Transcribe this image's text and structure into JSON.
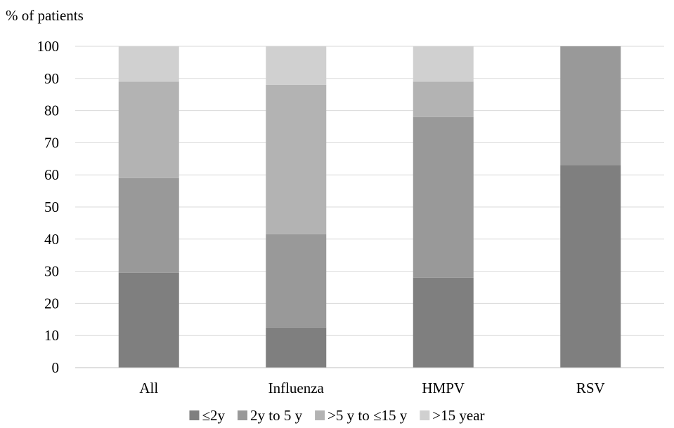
{
  "chart_data": {
    "type": "bar",
    "stacked": true,
    "ylabel": "% of patients",
    "xlabel": "",
    "title": "",
    "ylim": [
      0,
      100
    ],
    "yticks": [
      0,
      10,
      20,
      30,
      40,
      50,
      60,
      70,
      80,
      90,
      100
    ],
    "categories": [
      "All",
      "Influenza",
      "HMPV",
      "RSV"
    ],
    "series": [
      {
        "name": "≤2y",
        "color": "#7f7f7f",
        "values": [
          29.5,
          12.5,
          28,
          63
        ]
      },
      {
        "name": "2y to 5 y",
        "color": "#999999",
        "values": [
          29.5,
          29,
          50,
          37
        ]
      },
      {
        "name": ">5 y to ≤15 y",
        "color": "#b3b3b3",
        "values": [
          30,
          46.5,
          11,
          0
        ]
      },
      {
        "name": ">15 year",
        "color": "#d0d0d0",
        "values": [
          11,
          12,
          11,
          0
        ]
      }
    ],
    "grid": true,
    "legend_position": "bottom"
  }
}
